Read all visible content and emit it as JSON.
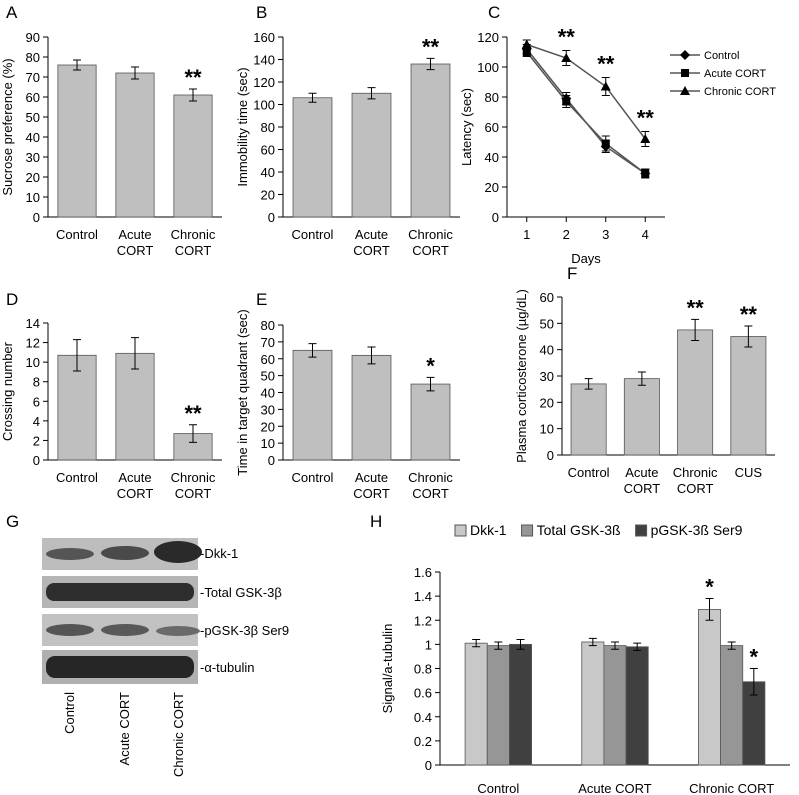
{
  "chart_data": [
    {
      "type": "bar",
      "label": "A",
      "ylabel": "Sucrose preference (%)",
      "categories": [
        "Control",
        "Acute CORT",
        "Chronic CORT"
      ],
      "wrap_labels": true,
      "values": [
        76,
        72,
        61
      ],
      "errors": [
        2.5,
        3,
        3
      ],
      "annotations": [
        null,
        null,
        "**"
      ],
      "color": "#bfbfbf",
      "ylim": [
        0,
        90
      ],
      "yticks": [
        0,
        10,
        20,
        30,
        40,
        50,
        60,
        70,
        80,
        90
      ]
    },
    {
      "type": "bar",
      "label": "B",
      "ylabel": "Immobility time (sec)",
      "categories": [
        "Control",
        "Acute CORT",
        "Chronic CORT"
      ],
      "wrap_labels": true,
      "values": [
        106,
        110,
        136
      ],
      "errors": [
        4,
        5,
        5
      ],
      "annotations": [
        null,
        null,
        "**"
      ],
      "color": "#bfbfbf",
      "ylim": [
        0,
        160
      ],
      "yticks": [
        0,
        20,
        40,
        60,
        80,
        100,
        120,
        140,
        160
      ]
    },
    {
      "type": "line",
      "label": "C",
      "ylabel": "Latency (sec)",
      "xlabel": "Days",
      "x": [
        1,
        2,
        3,
        4
      ],
      "xlim": [
        0.5,
        4.5
      ],
      "xticks": [
        1,
        2,
        3,
        4
      ],
      "ylim": [
        0,
        120
      ],
      "yticks": [
        0,
        20,
        40,
        60,
        80,
        100,
        120
      ],
      "legend": "right",
      "series": [
        {
          "name": "Control",
          "color": "#000000",
          "marker": "diamond",
          "values": [
            112,
            79,
            47,
            29
          ],
          "errors": [
            3,
            4,
            4,
            3
          ]
        },
        {
          "name": "Acute CORT",
          "color": "#000000",
          "marker": "square",
          "values": [
            110,
            77,
            49,
            29
          ],
          "errors": [
            3,
            4,
            5,
            3
          ]
        },
        {
          "name": "Chronic CORT",
          "color": "#000000",
          "marker": "triangle",
          "values": [
            115,
            106,
            87,
            52
          ],
          "errors": [
            3,
            5,
            6,
            5
          ],
          "annotations": [
            null,
            "**",
            "**",
            "**"
          ]
        }
      ]
    },
    {
      "type": "bar",
      "label": "D",
      "ylabel": "Crossing number",
      "categories": [
        "Control",
        "Acute CORT",
        "Chronic CORT"
      ],
      "wrap_labels": true,
      "values": [
        10.7,
        10.9,
        2.7
      ],
      "errors": [
        1.6,
        1.6,
        0.9
      ],
      "annotations": [
        null,
        null,
        "**"
      ],
      "color": "#bfbfbf",
      "ylim": [
        0,
        14
      ],
      "yticks": [
        0,
        2,
        4,
        6,
        8,
        10,
        12,
        14
      ]
    },
    {
      "type": "bar",
      "label": "E",
      "ylabel": "Time in target quadrant (sec)",
      "categories": [
        "Control",
        "Acute CORT",
        "Chronic CORT"
      ],
      "wrap_labels": true,
      "values": [
        65,
        62,
        45
      ],
      "errors": [
        4,
        5,
        4
      ],
      "annotations": [
        null,
        null,
        "*"
      ],
      "color": "#bfbfbf",
      "ylim": [
        0,
        80
      ],
      "yticks": [
        0,
        10,
        20,
        30,
        40,
        50,
        60,
        70,
        80
      ]
    },
    {
      "type": "bar",
      "label": "F",
      "ylabel": "Plasma corticosterone (µg/dL)",
      "categories": [
        "Control",
        "Acute CORT",
        "Chronic CORT",
        "CUS"
      ],
      "wrap_labels": true,
      "values": [
        27,
        29,
        47.5,
        45
      ],
      "errors": [
        2,
        2.5,
        4,
        4
      ],
      "annotations": [
        null,
        null,
        "**",
        "**"
      ],
      "color": "#bfbfbf",
      "ylim": [
        0,
        60
      ],
      "yticks": [
        0,
        10,
        20,
        30,
        40,
        50,
        60
      ]
    },
    {
      "type": "bar",
      "label": "H",
      "ylabel": "Signal/a-tubulin",
      "categories": [
        "Control",
        "Acute CORT",
        "Chronic CORT"
      ],
      "wrap_labels": false,
      "legend": "top",
      "ylim": [
        0,
        1.6
      ],
      "yticks": [
        0,
        0.2,
        0.4,
        0.6,
        0.8,
        1,
        1.2,
        1.4,
        1.6
      ],
      "series": [
        {
          "name": "Dkk-1",
          "color": "#c8c8c8",
          "values": [
            1.01,
            1.02,
            1.29
          ],
          "errors": [
            0.03,
            0.03,
            0.09
          ],
          "annotations": [
            null,
            null,
            "*"
          ]
        },
        {
          "name": "Total GSK-3ß",
          "color": "#969696",
          "values": [
            0.99,
            0.99,
            0.99
          ],
          "errors": [
            0.03,
            0.03,
            0.03
          ]
        },
        {
          "name": "pGSK-3ß Ser9",
          "color": "#404040",
          "values": [
            1.0,
            0.98,
            0.69
          ],
          "errors": [
            0.04,
            0.03,
            0.11
          ],
          "annotations": [
            null,
            null,
            "*"
          ]
        }
      ]
    }
  ],
  "blot": {
    "label": "G",
    "bands": [
      "-Dkk-1",
      "-Total GSK-3β",
      "-pGSK-3β Ser9",
      "-α-tubulin"
    ],
    "lanes": [
      "Control",
      "Acute CORT",
      "Chronic CORT"
    ]
  }
}
